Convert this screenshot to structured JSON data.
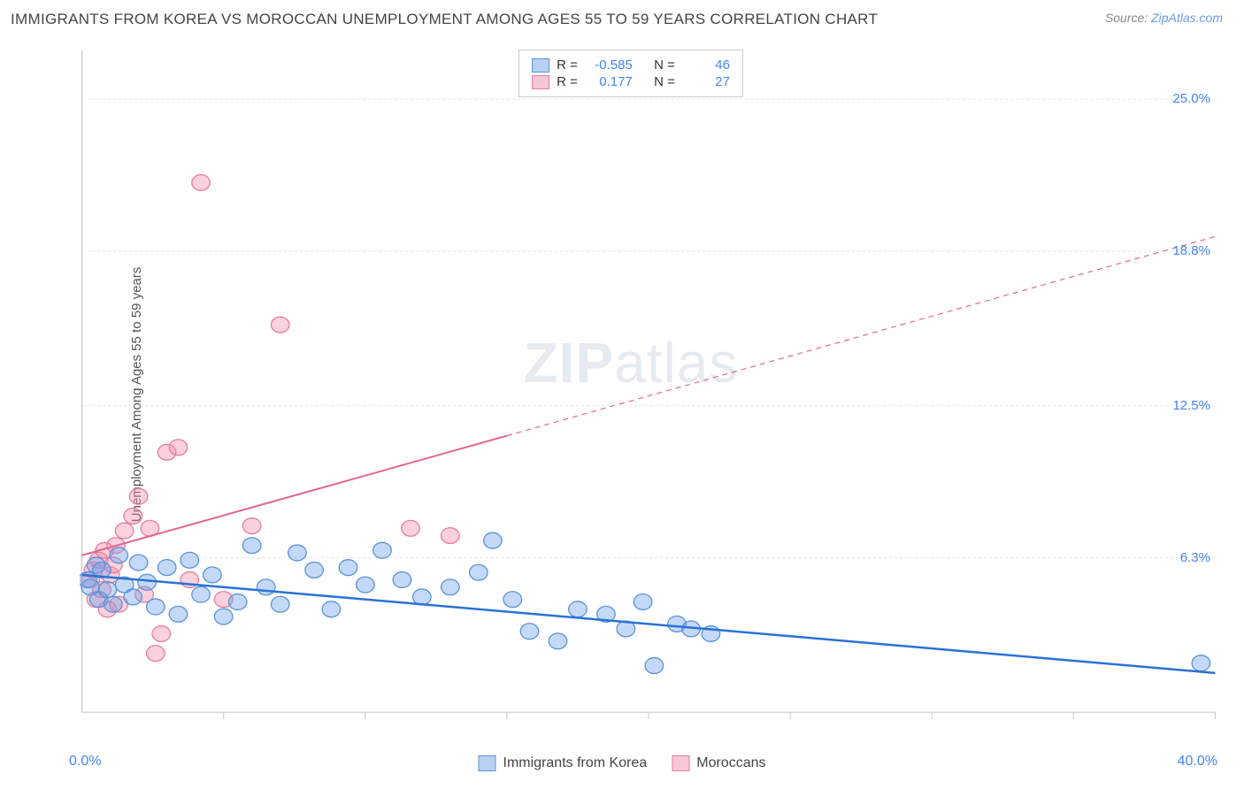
{
  "title": "IMMIGRANTS FROM KOREA VS MOROCCAN UNEMPLOYMENT AMONG AGES 55 TO 59 YEARS CORRELATION CHART",
  "source_prefix": "Source: ",
  "source_link": "ZipAtlas.com",
  "ylabel": "Unemployment Among Ages 55 to 59 years",
  "watermark_bold": "ZIP",
  "watermark_light": "atlas",
  "chart": {
    "type": "scatter",
    "xlim": [
      0,
      40
    ],
    "ylim": [
      0,
      27
    ],
    "x_min_label": "0.0%",
    "x_max_label": "40.0%",
    "y_ticks": [
      6.3,
      12.5,
      18.8,
      25.0
    ],
    "y_tick_labels": [
      "6.3%",
      "12.5%",
      "18.8%",
      "25.0%"
    ],
    "x_minor_ticks": [
      5,
      10,
      15,
      20,
      25,
      30,
      35,
      40
    ],
    "grid_color": "#e5e5e5",
    "axis_color": "#c8c8c8",
    "background": "#ffffff",
    "series": [
      {
        "name": "Immigrants from Korea",
        "color_fill": "rgba(108,160,234,0.4)",
        "color_stroke": "#5a93d8",
        "swatch_fill": "#b9d1f2",
        "swatch_border": "#5a93d8",
        "R": "-0.585",
        "N": "46",
        "trend": {
          "x1": 0,
          "y1": 5.6,
          "x2": 40,
          "y2": 1.6,
          "color": "#2a72d4",
          "width": 2.5,
          "dash_from_x": null
        },
        "points": [
          [
            0.2,
            5.4
          ],
          [
            0.3,
            5.1
          ],
          [
            0.5,
            6.0
          ],
          [
            0.6,
            4.6
          ],
          [
            0.7,
            5.8
          ],
          [
            0.9,
            5.0
          ],
          [
            1.1,
            4.4
          ],
          [
            1.3,
            6.4
          ],
          [
            1.5,
            5.2
          ],
          [
            1.8,
            4.7
          ],
          [
            2.0,
            6.1
          ],
          [
            2.3,
            5.3
          ],
          [
            2.6,
            4.3
          ],
          [
            3.0,
            5.9
          ],
          [
            3.4,
            4.0
          ],
          [
            3.8,
            6.2
          ],
          [
            4.2,
            4.8
          ],
          [
            4.6,
            5.6
          ],
          [
            5.0,
            3.9
          ],
          [
            5.5,
            4.5
          ],
          [
            6.0,
            6.8
          ],
          [
            6.5,
            5.1
          ],
          [
            7.0,
            4.4
          ],
          [
            7.6,
            6.5
          ],
          [
            8.2,
            5.8
          ],
          [
            8.8,
            4.2
          ],
          [
            9.4,
            5.9
          ],
          [
            10.0,
            5.2
          ],
          [
            10.6,
            6.6
          ],
          [
            11.3,
            5.4
          ],
          [
            12.0,
            4.7
          ],
          [
            13.0,
            5.1
          ],
          [
            14.0,
            5.7
          ],
          [
            14.5,
            7.0
          ],
          [
            15.2,
            4.6
          ],
          [
            15.8,
            3.3
          ],
          [
            16.8,
            2.9
          ],
          [
            17.5,
            4.2
          ],
          [
            18.5,
            4.0
          ],
          [
            19.2,
            3.4
          ],
          [
            19.8,
            4.5
          ],
          [
            20.2,
            1.9
          ],
          [
            21.0,
            3.6
          ],
          [
            21.5,
            3.4
          ],
          [
            22.2,
            3.2
          ],
          [
            39.5,
            2.0
          ]
        ]
      },
      {
        "name": "Moroccans",
        "color_fill": "rgba(244,140,168,0.4)",
        "color_stroke": "#e87ca0",
        "swatch_fill": "#f6c7d6",
        "swatch_border": "#e87ca0",
        "R": "0.177",
        "N": "27",
        "trend": {
          "x1": 0,
          "y1": 6.4,
          "x2": 40,
          "y2": 19.4,
          "color": "#e26791",
          "width": 2,
          "dash_from_x": 15
        },
        "points": [
          [
            0.3,
            5.4
          ],
          [
            0.4,
            5.8
          ],
          [
            0.5,
            4.6
          ],
          [
            0.6,
            6.2
          ],
          [
            0.7,
            5.0
          ],
          [
            0.8,
            6.6
          ],
          [
            0.9,
            4.2
          ],
          [
            1.0,
            5.6
          ],
          [
            1.1,
            6.0
          ],
          [
            1.2,
            6.8
          ],
          [
            1.3,
            4.4
          ],
          [
            1.5,
            7.4
          ],
          [
            1.8,
            8.0
          ],
          [
            2.0,
            8.8
          ],
          [
            2.2,
            4.8
          ],
          [
            2.4,
            7.5
          ],
          [
            2.6,
            2.4
          ],
          [
            2.8,
            3.2
          ],
          [
            3.0,
            10.6
          ],
          [
            3.4,
            10.8
          ],
          [
            3.8,
            5.4
          ],
          [
            4.2,
            21.6
          ],
          [
            5.0,
            4.6
          ],
          [
            6.0,
            7.6
          ],
          [
            7.0,
            15.8
          ],
          [
            11.6,
            7.5
          ],
          [
            13.0,
            7.2
          ]
        ]
      }
    ]
  },
  "legend_labels": {
    "R": "R =",
    "N": "N ="
  }
}
